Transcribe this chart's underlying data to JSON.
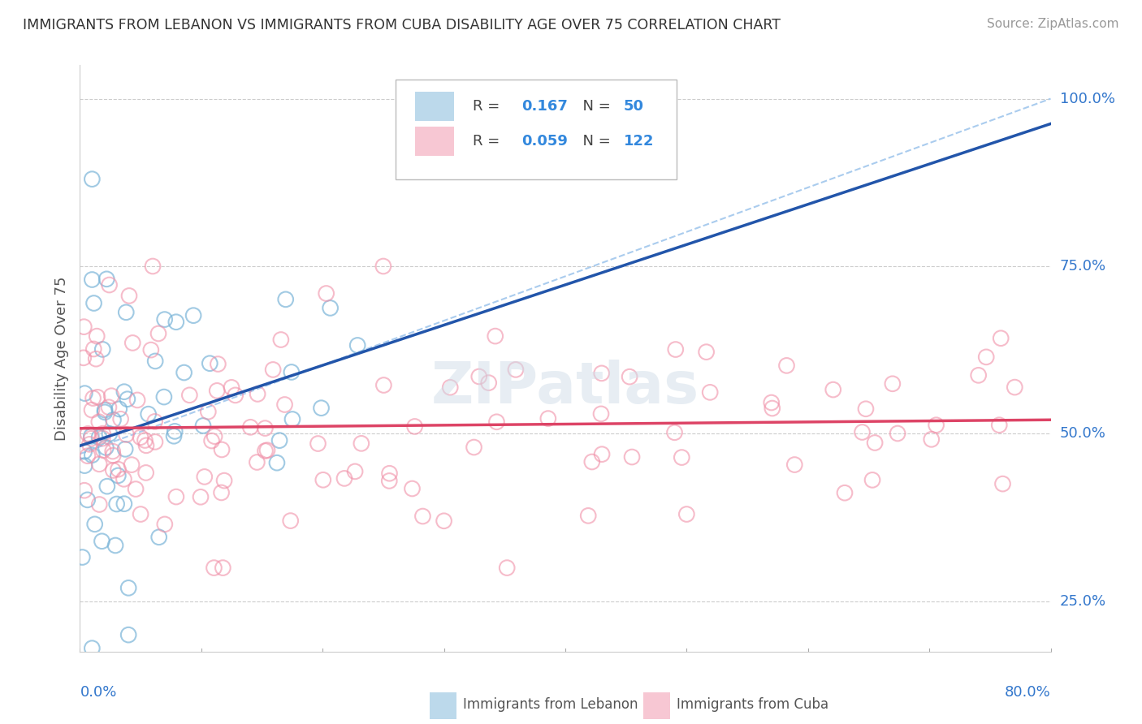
{
  "title": "IMMIGRANTS FROM LEBANON VS IMMIGRANTS FROM CUBA DISABILITY AGE OVER 75 CORRELATION CHART",
  "source": "Source: ZipAtlas.com",
  "ylabel": "Disability Age Over 75",
  "ytick_labels": [
    "25.0%",
    "50.0%",
    "75.0%",
    "100.0%"
  ],
  "ytick_values": [
    0.25,
    0.5,
    0.75,
    1.0
  ],
  "xlim": [
    0.0,
    0.8
  ],
  "ylim": [
    0.175,
    1.05
  ],
  "lebanon_color": "#7ab4d8",
  "cuba_color": "#f090a8",
  "lebanon_line_color": "#2255aa",
  "cuba_line_color": "#dd4466",
  "dash_line_color": "#aaccee",
  "background_color": "#ffffff",
  "watermark": "ZIPatlas",
  "legend_leb_R": "0.167",
  "legend_leb_N": "50",
  "legend_cuba_R": "0.059",
  "legend_cuba_N": "122",
  "legend_label_leb": "Immigrants from Lebanon",
  "legend_label_cuba": "Immigrants from Cuba"
}
